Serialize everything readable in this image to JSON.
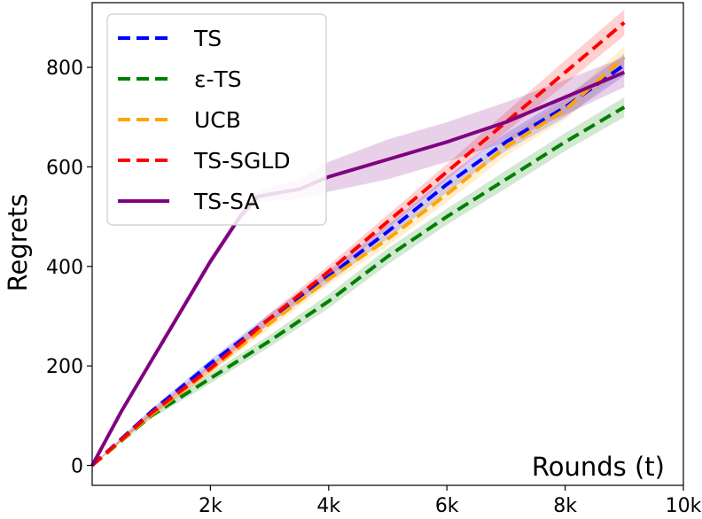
{
  "chart_data": {
    "type": "line",
    "xlabel": "Rounds (t)",
    "ylabel": "Regrets",
    "xlim": [
      0,
      10000
    ],
    "ylim": [
      -40,
      930
    ],
    "x_ticks": [
      {
        "value": 2000,
        "label": "2k"
      },
      {
        "value": 4000,
        "label": "4k"
      },
      {
        "value": 6000,
        "label": "6k"
      },
      {
        "value": 8000,
        "label": "8k"
      },
      {
        "value": 10000,
        "label": "10k"
      }
    ],
    "y_ticks": [
      {
        "value": 0,
        "label": "0"
      },
      {
        "value": 200,
        "label": "200"
      },
      {
        "value": 400,
        "label": "400"
      },
      {
        "value": 600,
        "label": "600"
      },
      {
        "value": 800,
        "label": "800"
      }
    ],
    "grid": false,
    "legend_position": "top-left",
    "series": [
      {
        "name": "TS",
        "color": "#0000ff",
        "style": "dashed",
        "x": [
          0,
          1000,
          2000,
          3000,
          4000,
          5000,
          6000,
          7000,
          8000,
          9000
        ],
        "y": [
          0,
          108,
          205,
          295,
          380,
          470,
          565,
          650,
          720,
          805
        ],
        "band": [
          0,
          6,
          8,
          10,
          12,
          14,
          16,
          18,
          20,
          22
        ]
      },
      {
        "name": "ε-TS",
        "color": "#008000",
        "style": "dashed",
        "x": [
          0,
          1000,
          2000,
          3000,
          4000,
          5000,
          6000,
          7000,
          8000,
          9000
        ],
        "y": [
          0,
          100,
          175,
          250,
          330,
          420,
          500,
          575,
          650,
          720
        ],
        "band": [
          0,
          6,
          10,
          12,
          14,
          16,
          16,
          18,
          18,
          20
        ]
      },
      {
        "name": "UCB",
        "color": "#ffa500",
        "style": "dashed",
        "x": [
          0,
          1000,
          2000,
          3000,
          4000,
          5000,
          6000,
          7000,
          8000,
          9000
        ],
        "y": [
          0,
          102,
          192,
          285,
          375,
          455,
          545,
          640,
          715,
          820
        ],
        "band": [
          0,
          6,
          8,
          10,
          12,
          14,
          16,
          18,
          20,
          22
        ]
      },
      {
        "name": "TS-SGLD",
        "color": "#ff0000",
        "style": "dashed",
        "x": [
          0,
          1000,
          2000,
          3000,
          4000,
          5000,
          6000,
          7000,
          8000,
          9000
        ],
        "y": [
          0,
          105,
          195,
          295,
          390,
          490,
          590,
          690,
          790,
          890
        ],
        "band": [
          0,
          6,
          8,
          10,
          12,
          14,
          16,
          20,
          24,
          26
        ]
      },
      {
        "name": "TS-SA",
        "color": "#800080",
        "style": "solid",
        "x": [
          0,
          500,
          1000,
          1500,
          2000,
          2500,
          2800,
          3000,
          3500,
          4000,
          5000,
          6000,
          7000,
          8000,
          9000
        ],
        "y": [
          0,
          110,
          210,
          310,
          410,
          500,
          540,
          545,
          555,
          580,
          615,
          650,
          690,
          740,
          790
        ],
        "band": [
          0,
          4,
          6,
          8,
          8,
          8,
          10,
          14,
          20,
          30,
          40,
          40,
          40,
          35,
          30
        ]
      }
    ]
  }
}
